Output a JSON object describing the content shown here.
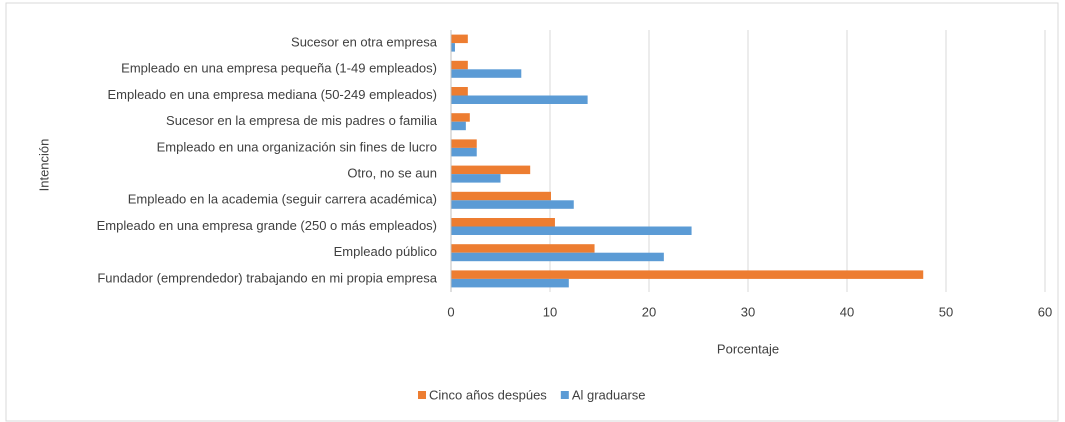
{
  "chart_data": {
    "type": "hbar",
    "xlabel": "Porcentaje",
    "ylabel": "Intención",
    "categories": [
      "Sucesor en otra empresa",
      "Empleado en una empresa pequeña (1-49 empleados)",
      "Empleado en una empresa mediana (50-249 empleados)",
      "Sucesor en la empresa de mis padres o familia",
      "Empleado en una organización sin fines de lucro",
      "Otro, no se aun",
      "Empleado en la academia  (seguir carrera académica)",
      "Empleado en una empresa grande (250 o más empleados)",
      "Empleado público",
      "Fundador (emprendedor) trabajando en mi propia empresa"
    ],
    "series": [
      {
        "name": "Cinco años despúes",
        "color": "#ed7d31",
        "values": [
          1.7,
          1.7,
          1.7,
          1.9,
          2.6,
          8.0,
          10.1,
          10.5,
          14.5,
          47.7
        ]
      },
      {
        "name": "Al graduarse",
        "color": "#5b9bd5",
        "values": [
          0.4,
          7.1,
          13.8,
          1.5,
          2.6,
          5.0,
          12.4,
          24.3,
          21.5,
          11.9
        ]
      }
    ],
    "xlim": [
      0,
      60
    ],
    "xticks": [
      0,
      10,
      20,
      30,
      40,
      50,
      60
    ],
    "grid": true,
    "legend": "bottom"
  }
}
